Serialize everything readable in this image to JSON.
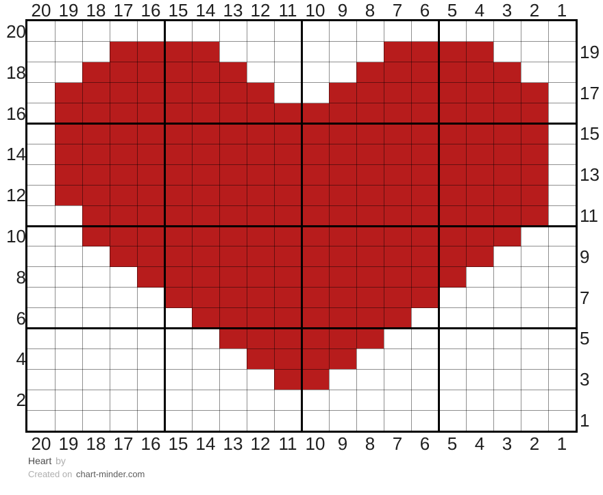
{
  "footer": {
    "title": "Heart",
    "by_label": "by",
    "created_prefix": "Created on",
    "site": "chart-minder.com"
  },
  "chart_data": {
    "type": "heatmap",
    "title": "Heart",
    "columns": 20,
    "rows": 20,
    "column_labels_left_to_right": [
      "20",
      "19",
      "18",
      "17",
      "16",
      "15",
      "14",
      "13",
      "12",
      "11",
      "10",
      "9",
      "8",
      "7",
      "6",
      "5",
      "4",
      "3",
      "2",
      "1"
    ],
    "row_labels_top_to_bottom": [
      "20",
      "19",
      "18",
      "17",
      "16",
      "15",
      "14",
      "13",
      "12",
      "11",
      "10",
      "9",
      "8",
      "7",
      "6",
      "5",
      "4",
      "3",
      "2",
      "1"
    ],
    "left_axis_labels_top_to_bottom": [
      "20",
      "18",
      "16",
      "14",
      "12",
      "10",
      "8",
      "6",
      "4",
      "2"
    ],
    "right_axis_labels_top_to_bottom": [
      "19",
      "17",
      "15",
      "13",
      "11",
      "9",
      "7",
      "5",
      "3",
      "1"
    ],
    "grid_major_every": 5,
    "legend_shown": false,
    "colors": {
      "filled": "#b71c1c",
      "empty": "#ffffff",
      "grid_minor": "rgba(0,0,0,0.44)",
      "grid_major": "#000000",
      "label_text": "#1f1f1f"
    },
    "pattern_rows_top_to_bottom": [
      "....................",
      "...XXXX......XXXX...",
      "..XXXXXX....XXXXXX..",
      ".XXXXXXXX..XXXXXXXX.",
      ".XXXXXXXXXXXXXXXXXX.",
      ".XXXXXXXXXXXXXXXXXX.",
      ".XXXXXXXXXXXXXXXXXX.",
      ".XXXXXXXXXXXXXXXXXX.",
      ".XXXXXXXXXXXXXXXXXX.",
      "..XXXXXXXXXXXXXXXXX.",
      "..XXXXXXXXXXXXXXXX..",
      "...XXXXXXXXXXXXXX...",
      "....XXXXXXXXXXXX....",
      ".....XXXXXXXXXX.....",
      "......XXXXXXXX......",
      ".......XXXXXX.......",
      "........XXXX........",
      ".........XX.........",
      "....................",
      "...................."
    ]
  }
}
